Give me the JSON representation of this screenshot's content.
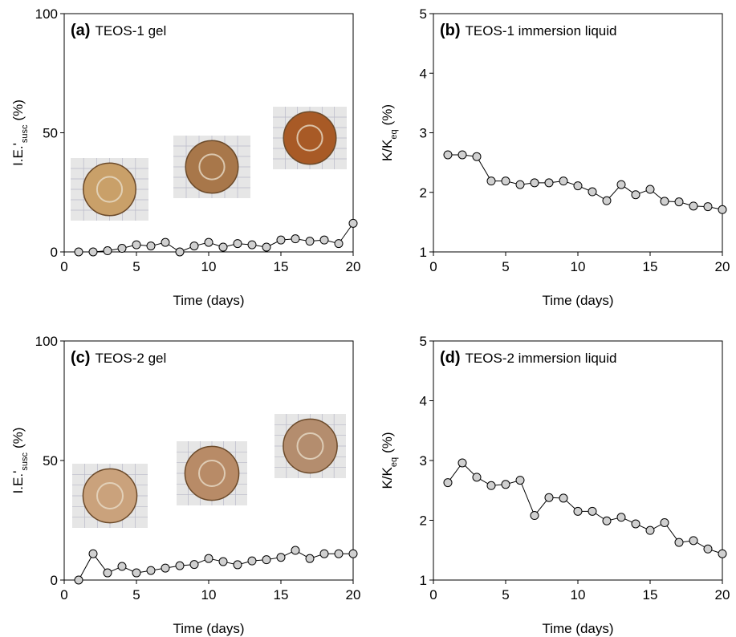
{
  "chart_data": [
    {
      "type": "line",
      "label": "(a)",
      "title": "TEOS-1 gel",
      "xlabel": "Time (days)",
      "ylabel": [
        "I.E.'",
        "susc",
        "(%)"
      ],
      "x": [
        1,
        2,
        3,
        4,
        5,
        6,
        7,
        8,
        9,
        10,
        11,
        12,
        13,
        14,
        15,
        16,
        17,
        18,
        19,
        20
      ],
      "values": [
        0,
        0,
        0.5,
        1.5,
        3,
        2.5,
        4,
        0,
        2.5,
        4,
        2,
        3.5,
        3,
        2,
        5,
        5.5,
        4.5,
        5,
        3.5,
        12
      ],
      "color": "#d0d0d0",
      "xlim": [
        0,
        20
      ],
      "xticks": [
        0,
        5,
        10,
        15,
        20
      ],
      "ylim": [
        0,
        100
      ],
      "yticks": [
        0,
        50,
        100
      ]
    },
    {
      "type": "line",
      "label": "(b)",
      "title": "TEOS-1 immersion liquid",
      "xlabel": "Time (days)",
      "ylabel": [
        "K/K",
        "eq",
        "(%)"
      ],
      "x": [
        1,
        2,
        3,
        4,
        5,
        6,
        7,
        8,
        9,
        10,
        11,
        12,
        13,
        14,
        15,
        16,
        17,
        18,
        19,
        20
      ],
      "values": [
        2.63,
        2.63,
        2.6,
        2.19,
        2.19,
        2.13,
        2.16,
        2.16,
        2.19,
        2.11,
        2.01,
        1.86,
        2.13,
        1.96,
        2.05,
        1.85,
        1.84,
        1.77,
        1.76,
        1.71
      ],
      "color": "#d0d0d0",
      "xlim": [
        0,
        20
      ],
      "xticks": [
        0,
        5,
        10,
        15,
        20
      ],
      "ylim": [
        1,
        5
      ],
      "yticks": [
        1,
        2,
        3,
        4,
        5
      ]
    },
    {
      "type": "line",
      "label": "(c)",
      "title": "TEOS-2 gel",
      "xlabel": "Time (days)",
      "ylabel": [
        "I.E.'",
        "susc",
        "(%)"
      ],
      "x": [
        1,
        2,
        3,
        4,
        5,
        6,
        7,
        8,
        9,
        10,
        11,
        12,
        13,
        14,
        15,
        16,
        17,
        18,
        19,
        20
      ],
      "values": [
        0,
        11,
        3,
        5.7,
        3,
        4,
        5,
        6,
        6.5,
        9,
        7.7,
        6.4,
        8,
        8.5,
        9.5,
        12.4,
        9,
        11,
        11,
        11
      ],
      "color": "#d0d0d0",
      "xlim": [
        0,
        20
      ],
      "xticks": [
        0,
        5,
        10,
        15,
        20
      ],
      "ylim": [
        0,
        100
      ],
      "yticks": [
        0,
        50,
        100
      ]
    },
    {
      "type": "line",
      "label": "(d)",
      "title": "TEOS-2 immersion liquid",
      "xlabel": "Time (days)",
      "ylabel": [
        "K/K",
        "eq",
        "(%)"
      ],
      "x": [
        1,
        2,
        3,
        4,
        5,
        6,
        7,
        8,
        9,
        10,
        11,
        12,
        13,
        14,
        15,
        16,
        17,
        18,
        19,
        20
      ],
      "values": [
        2.63,
        2.96,
        2.72,
        2.58,
        2.6,
        2.67,
        2.08,
        2.38,
        2.37,
        2.15,
        2.15,
        1.99,
        2.05,
        1.94,
        1.83,
        1.96,
        1.63,
        1.66,
        1.52,
        1.44
      ],
      "color": "#d0d0d0",
      "xlim": [
        0,
        20
      ],
      "xticks": [
        0,
        5,
        10,
        15,
        20
      ],
      "ylim": [
        1,
        5
      ],
      "yticks": [
        1,
        2,
        3,
        4,
        5
      ]
    }
  ]
}
